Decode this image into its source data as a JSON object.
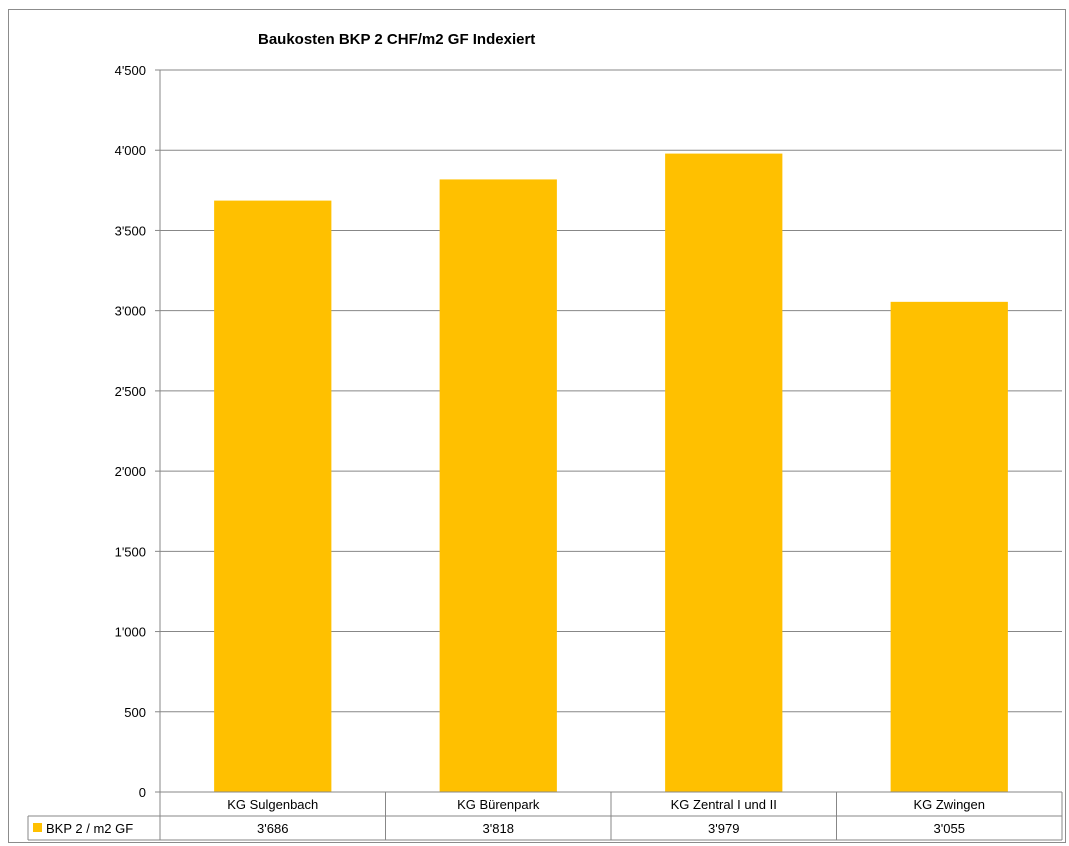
{
  "chart_data": {
    "type": "bar",
    "title": "Baukosten  BKP 2 CHF/m2 GF Indexiert",
    "categories": [
      "KG Sulgenbach",
      "KG Bürenpark",
      "KG Zentral I und II",
      "KG Zwingen"
    ],
    "series": [
      {
        "name": "BKP 2 / m2 GF",
        "values": [
          3686,
          3818,
          3979,
          3055
        ],
        "value_labels": [
          "3'686",
          "3'818",
          "3'979",
          "3'055"
        ],
        "color": "#FFC000"
      }
    ],
    "y_ticks": [
      0,
      500,
      1000,
      1500,
      2000,
      2500,
      3000,
      3500,
      4000,
      4500
    ],
    "y_tick_labels": [
      "0",
      "500",
      "1'000",
      "1'500",
      "2'000",
      "2'500",
      "3'000",
      "3'500",
      "4'000",
      "4'500"
    ],
    "ylim": [
      0,
      4500
    ],
    "xlabel": "",
    "ylabel": "",
    "grid": true,
    "legend": "data-table-left"
  }
}
